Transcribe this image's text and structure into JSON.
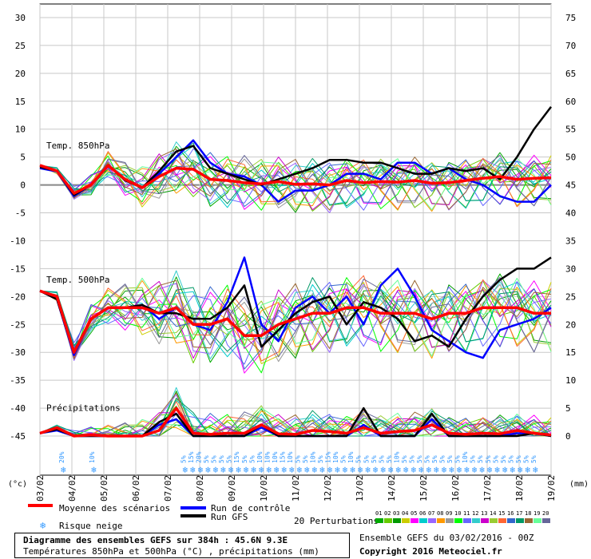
{
  "chart_data": {
    "type": "line",
    "x_labels": [
      "03/02",
      "04/02",
      "05/02",
      "06/02",
      "07/02",
      "08/02",
      "09/02",
      "10/02",
      "11/02",
      "12/02",
      "13/02",
      "14/02",
      "15/02",
      "16/02",
      "17/02",
      "18/02",
      "19/02"
    ],
    "left_ticks": [
      30,
      25,
      20,
      15,
      10,
      5,
      0,
      -5,
      -10,
      -15,
      -20,
      -25,
      -30,
      -35,
      -40,
      -45
    ],
    "right_ticks": [
      75,
      70,
      65,
      60,
      55,
      50,
      45,
      40,
      35,
      30,
      25,
      20,
      15,
      10,
      5,
      0
    ],
    "left_unit": "(°c)",
    "right_unit": "(mm)",
    "panel_labels": [
      "Temp. 850hPa",
      "Temp. 500hPa",
      "Précipitations"
    ],
    "t850": {
      "mean": [
        3.5,
        2.5,
        -1.5,
        0,
        3.5,
        1,
        -0.5,
        1.5,
        3,
        2.8,
        1,
        0.8,
        0.4,
        0.2,
        0.6,
        0.1,
        0.2,
        0,
        0.8,
        0.4,
        0.6,
        0.5,
        0.8,
        0.3,
        0.4,
        0.8,
        1.2,
        1.5,
        1.0,
        1.2,
        1.3
      ],
      "control": [
        3,
        2.4,
        -2,
        0,
        3.5,
        1,
        -0.5,
        2,
        5,
        8,
        4,
        2,
        1.5,
        0,
        -3,
        -1,
        -1,
        0,
        2,
        2,
        1,
        4,
        4,
        2,
        3,
        1,
        0,
        -2,
        -3,
        -3,
        0
      ],
      "gfs": [
        3.2,
        2.5,
        -1.8,
        0,
        3.6,
        0.8,
        -0.5,
        2.5,
        6,
        7,
        3,
        2,
        1,
        0,
        1,
        2,
        3,
        4.5,
        4.5,
        4,
        4,
        3,
        2,
        2,
        3,
        2.5,
        3,
        1,
        5,
        10,
        14
      ]
    },
    "t500": {
      "mean": [
        -19,
        -20,
        -30,
        -24,
        -22,
        -22,
        -22,
        -23,
        -22,
        -25,
        -25,
        -24,
        -27,
        -27,
        -25,
        -24,
        -23,
        -23,
        -22,
        -22,
        -23,
        -23,
        -23,
        -24,
        -23,
        -23,
        -22,
        -22,
        -22,
        -23,
        -23
      ],
      "control": [
        -19,
        -20.5,
        -30.5,
        -24,
        -22,
        -22,
        -21.5,
        -24,
        -22,
        -25,
        -26,
        -21,
        -13,
        -25,
        -28,
        -22,
        -20,
        -23,
        -20,
        -25,
        -18,
        -15,
        -20,
        -26,
        -28,
        -30,
        -31,
        -26,
        -25,
        -24,
        -22
      ],
      "gfs": [
        -19,
        -20.5,
        -30,
        -24,
        -22,
        -22,
        -21.5,
        -23,
        -23,
        -24,
        -24,
        -22,
        -18,
        -29,
        -26,
        -23,
        -21,
        -20,
        -25,
        -21,
        -22,
        -24,
        -28,
        -27,
        -29,
        -24,
        -20,
        -17,
        -15,
        -15,
        -13
      ]
    },
    "precip": {
      "mean": [
        0.5,
        1.5,
        0,
        0.2,
        0,
        0,
        0,
        1,
        5,
        0.5,
        0.3,
        0.5,
        0.5,
        2,
        0.4,
        0.3,
        1,
        0.8,
        0.5,
        1.5,
        0.5,
        0.8,
        1,
        2,
        0.5,
        0.3,
        0.5,
        0.4,
        1,
        0.5,
        0.2
      ],
      "control": [
        0.5,
        1,
        0,
        0,
        0,
        0,
        0,
        2,
        3,
        0,
        0,
        0,
        0,
        1.5,
        0,
        0,
        0,
        0,
        0,
        2,
        0,
        0,
        0,
        3,
        0,
        0,
        0,
        0,
        0.5,
        0.5,
        0
      ],
      "gfs": [
        0.5,
        1.2,
        0,
        0,
        0,
        0,
        0,
        2.5,
        4,
        0,
        0,
        0,
        0,
        2,
        0,
        0,
        0,
        0,
        0,
        5,
        0,
        0,
        0,
        4,
        0,
        0,
        0,
        0,
        0,
        0.5,
        0
      ]
    },
    "snow_risk": [
      "20%",
      "10%",
      "5%",
      "15%",
      "20%",
      "5%",
      "5%",
      "5%",
      "5%",
      "15%",
      "5%",
      "5%",
      "10%",
      "10%",
      "10%",
      "15%",
      "10%",
      "5%",
      "5%",
      "10%",
      "5%",
      "15%",
      "10%",
      "5%",
      "10%",
      "5%",
      "5%",
      "5%",
      "5%",
      "5%",
      "10%",
      "5%",
      "5%",
      "5%",
      "5%",
      "5%",
      "5%",
      "5%",
      "5%",
      "10%",
      "5%",
      "5%",
      "5%",
      "5%",
      "5%",
      "5%",
      "5%",
      "5%",
      "5%"
    ],
    "legend": {
      "mean": "Moyenne des scénarios",
      "snow": "Risque neige",
      "control": "Run de contrôle",
      "gfs": "Run GFS",
      "perturbations": "20 Perturbations",
      "pert_numbers": [
        "01",
        "02",
        "03",
        "04",
        "05",
        "06",
        "07",
        "08",
        "09",
        "10",
        "11",
        "12",
        "13",
        "14",
        "15",
        "16",
        "17",
        "18",
        "19",
        "20"
      ]
    },
    "colors": {
      "mean": "#ff0000",
      "control": "#0000ff",
      "gfs": "#000000",
      "snow": "#3399ff",
      "perturbations": [
        "#00aa00",
        "#66cc00",
        "#009900",
        "#cccc00",
        "#ff00ff",
        "#00cccc",
        "#9966ff",
        "#ff9900",
        "#999999",
        "#00ff00",
        "#6666ff",
        "#33cccc",
        "#cc00cc",
        "#99cc33",
        "#ff6633",
        "#3366cc",
        "#009966",
        "#996633",
        "#66ff99",
        "#666699"
      ]
    }
  },
  "footer": {
    "title": "Diagramme des ensembles GEFS sur 384h : 45.6N 9.3E",
    "subtitle": "Températures 850hPa et 500hPa (°C) , précipitations (mm)",
    "ensemble": "Ensemble GEFS du 03/02/2016 - 00Z",
    "copyright": "Copyright 2016 Meteociel.fr"
  }
}
